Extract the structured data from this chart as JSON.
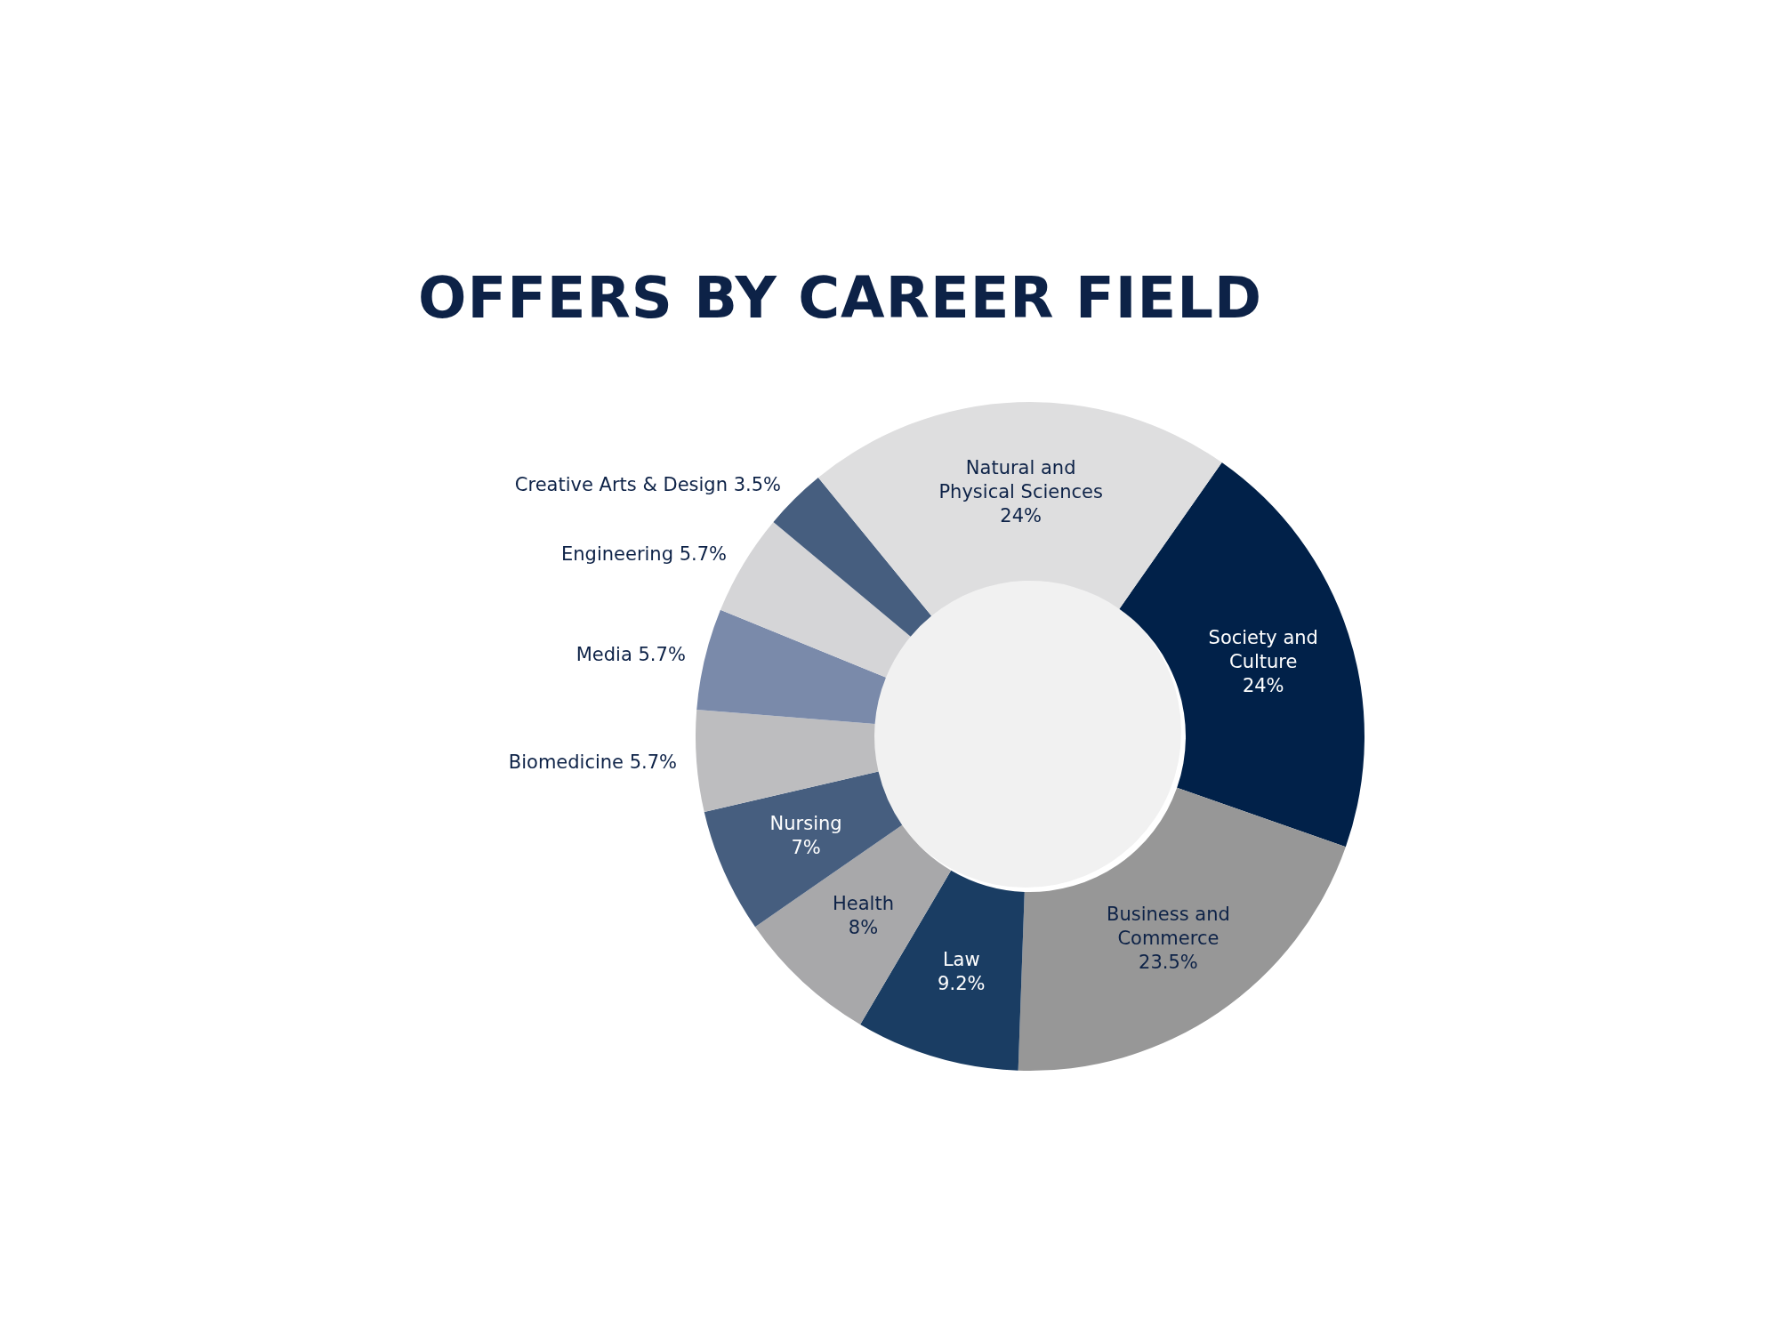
{
  "chart_data": {
    "type": "donut",
    "title": "OFFERS BY CAREER FIELD",
    "categories": [
      "Society and Culture",
      "Business and Commerce",
      "Law",
      "Health",
      "Nursing",
      "Biomedicine",
      "Media",
      "Engineering",
      "Creative Arts & Design",
      "Natural and Physical Sciences"
    ],
    "values": [
      24,
      23.5,
      9.2,
      8,
      7,
      5.7,
      5.7,
      5.7,
      3.5,
      24
    ],
    "value_labels": [
      "24%",
      "23.5%",
      "9.2%",
      "8%",
      "7%",
      "5.7%",
      "5.7%",
      "5.7%",
      "3.5%",
      "24%"
    ],
    "colors": [
      "#012149",
      "#979797",
      "#1a3d63",
      "#a8a8aa",
      "#465e7f",
      "#bdbdbf",
      "#7a8aaa",
      "#d5d5d7",
      "#465e7f",
      "#dededf"
    ],
    "legend": false
  }
}
